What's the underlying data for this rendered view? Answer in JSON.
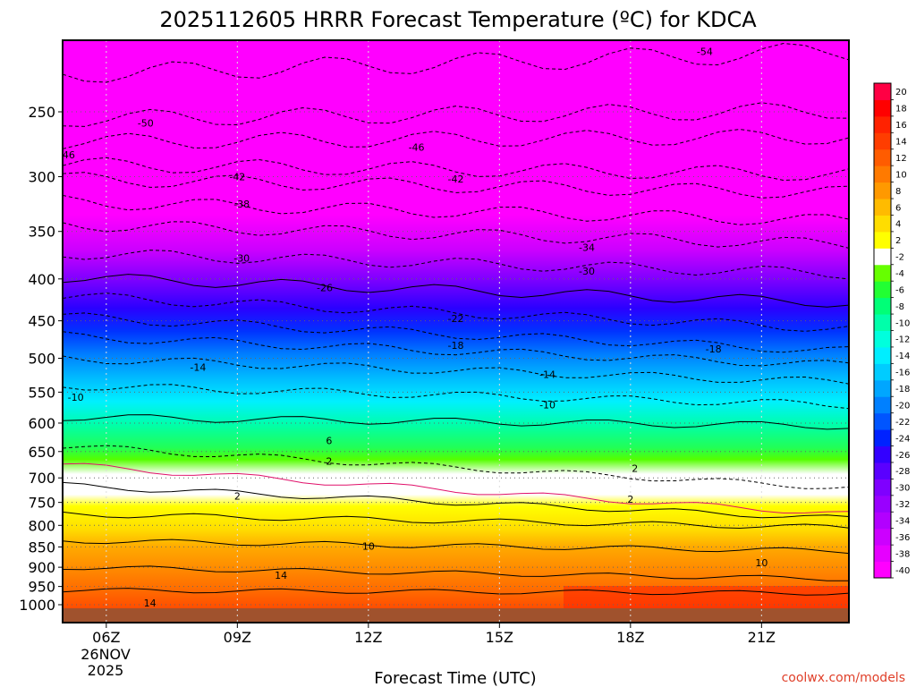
{
  "chart_data": {
    "type": "heatmap",
    "title": "2025112605 HRRR Forecast Temperature (ºC) for KDCA",
    "xlabel": "Forecast Time (UTC)",
    "ylabel": "",
    "x_ticks": [
      "06Z",
      "09Z",
      "12Z",
      "15Z",
      "18Z",
      "21Z"
    ],
    "x_date_label": [
      "26NOV",
      "2025"
    ],
    "x_hours": [
      5,
      23
    ],
    "y_axis": "log pressure (hPa), inverted",
    "y_ticks": [
      250,
      300,
      350,
      400,
      450,
      500,
      550,
      600,
      650,
      700,
      750,
      800,
      850,
      900,
      950,
      1000
    ],
    "ylim": [
      1000,
      200
    ],
    "grid": true,
    "colorbar": {
      "placement": "right",
      "levels": [
        -40,
        -38,
        -36,
        -34,
        -32,
        -30,
        -28,
        -26,
        -24,
        -22,
        -20,
        -18,
        -16,
        -14,
        -12,
        -10,
        -8,
        -6,
        -4,
        -2,
        2,
        4,
        6,
        8,
        10,
        12,
        14,
        16,
        18,
        20
      ],
      "colors": [
        "#ff00ff",
        "#e600ff",
        "#cc00ff",
        "#b200ff",
        "#9900ff",
        "#7f00ff",
        "#5a00ff",
        "#3300ff",
        "#0022ff",
        "#0055ff",
        "#0080ff",
        "#00a6ff",
        "#00ccff",
        "#00eeff",
        "#00ffdd",
        "#00ffaa",
        "#00ff77",
        "#22ff33",
        "#66ff00",
        "#ffffff",
        "#ffff00",
        "#ffdd00",
        "#ffbb00",
        "#ff9900",
        "#ff7a00",
        "#ff5c00",
        "#ff3d00",
        "#ff2200",
        "#ff0000",
        "#ff0044"
      ]
    },
    "contour_labels": [
      {
        "value": "-54",
        "hour": 19.7,
        "p": 211
      },
      {
        "value": "-50",
        "hour": 6.9,
        "p": 258
      },
      {
        "value": "-46",
        "hour": 5.1,
        "p": 282
      },
      {
        "value": "-46",
        "hour": 13.1,
        "p": 276
      },
      {
        "value": "-42",
        "hour": 9.0,
        "p": 300
      },
      {
        "value": "-42",
        "hour": 14.0,
        "p": 302
      },
      {
        "value": "-38",
        "hour": 9.1,
        "p": 324
      },
      {
        "value": "-34",
        "hour": 17.0,
        "p": 366
      },
      {
        "value": "-30",
        "hour": 9.1,
        "p": 377
      },
      {
        "value": "-30",
        "hour": 17.0,
        "p": 391
      },
      {
        "value": "-26",
        "hour": 11.0,
        "p": 410
      },
      {
        "value": "-22",
        "hour": 14.0,
        "p": 447
      },
      {
        "value": "-18",
        "hour": 14.0,
        "p": 482
      },
      {
        "value": "-18",
        "hour": 19.9,
        "p": 487
      },
      {
        "value": "-14",
        "hour": 8.1,
        "p": 513
      },
      {
        "value": "-14",
        "hour": 16.1,
        "p": 523
      },
      {
        "value": "-10",
        "hour": 5.3,
        "p": 558
      },
      {
        "value": "-10",
        "hour": 16.1,
        "p": 570
      },
      {
        "value": "6",
        "hour": 11.1,
        "p": 630
      },
      {
        "value": "2",
        "hour": 11.1,
        "p": 668
      },
      {
        "value": "2",
        "hour": 18.1,
        "p": 681
      },
      {
        "value": "2",
        "hour": 9.0,
        "p": 737
      },
      {
        "value": "2",
        "hour": 18.0,
        "p": 743
      },
      {
        "value": "10",
        "hour": 12.0,
        "p": 848
      },
      {
        "value": "10",
        "hour": 21.0,
        "p": 888
      },
      {
        "value": "14",
        "hour": 10.0,
        "p": 920
      },
      {
        "value": "14",
        "hour": 7.0,
        "p": 995
      }
    ]
  },
  "credit": "coolwx.com/models"
}
